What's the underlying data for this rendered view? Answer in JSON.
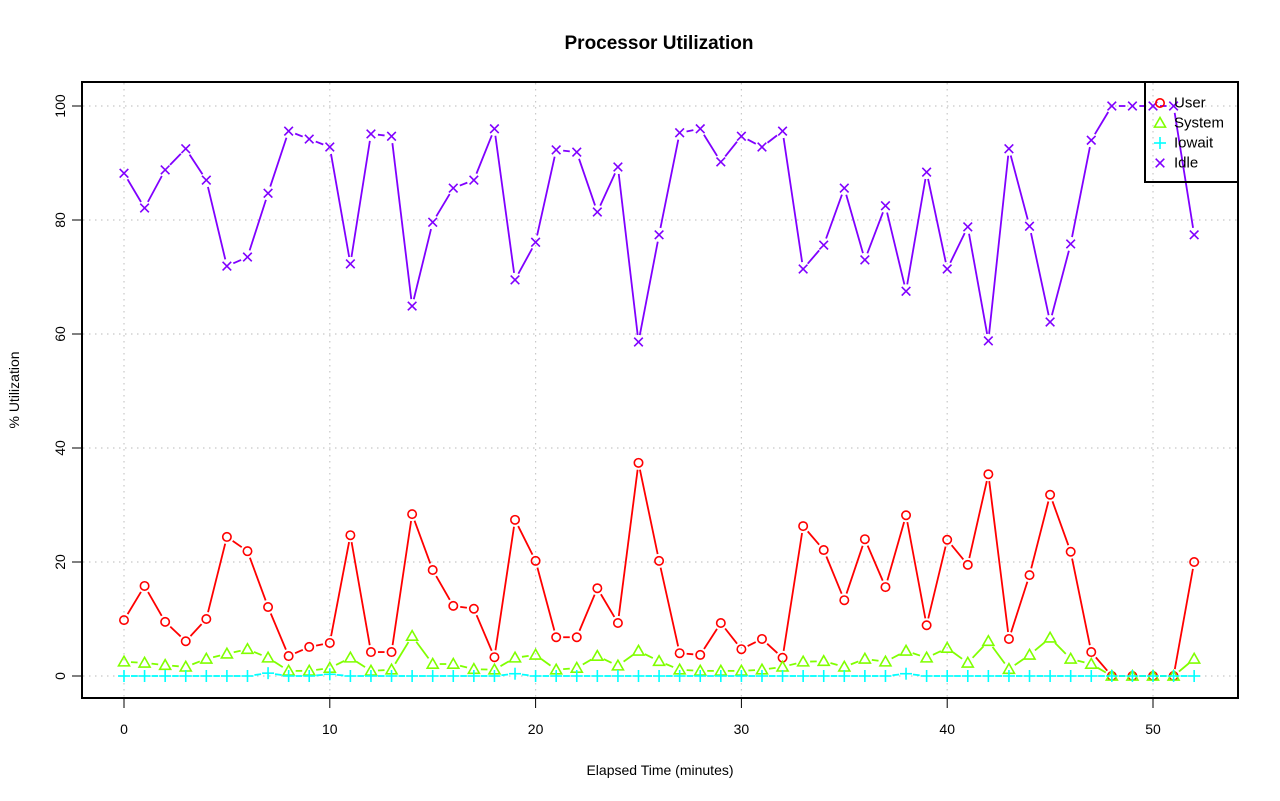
{
  "chart_data": {
    "type": "line",
    "title": "Processor Utilization",
    "xlabel": "Elapsed Time (minutes)",
    "ylabel": "% Utilization",
    "xlim": [
      -2.04,
      54.1
    ],
    "ylim": [
      -4,
      104
    ],
    "xticks": [
      0,
      10,
      20,
      30,
      40,
      50
    ],
    "yticks": [
      0,
      20,
      40,
      60,
      80,
      100
    ],
    "xtick_labels": [
      "0",
      "10",
      "20",
      "30",
      "40",
      "50"
    ],
    "ytick_labels": [
      "0",
      "20",
      "40",
      "60",
      "80",
      "100"
    ],
    "grid": true,
    "legend_position": "top-right",
    "x": [
      0,
      1,
      2,
      3,
      4,
      5,
      6,
      7,
      8,
      9,
      10,
      11,
      12,
      13,
      14,
      15,
      16,
      17,
      18,
      19,
      20,
      21,
      22,
      23,
      24,
      25,
      26,
      27,
      28,
      29,
      30,
      31,
      32,
      33,
      34,
      35,
      36,
      37,
      38,
      39,
      40,
      41,
      42,
      43,
      44,
      45,
      46,
      47,
      48,
      49,
      50,
      51,
      52
    ],
    "series": [
      {
        "name": "User",
        "color": "#ff0000",
        "marker": "circle",
        "values": [
          9.8,
          15.8,
          9.5,
          6.1,
          10.0,
          24.4,
          21.9,
          12.1,
          3.5,
          5.1,
          5.8,
          24.7,
          4.2,
          4.2,
          28.4,
          18.6,
          12.3,
          11.8,
          3.3,
          27.4,
          20.2,
          6.8,
          6.8,
          15.4,
          9.3,
          37.4,
          20.2,
          4.0,
          3.7,
          9.3,
          4.7,
          6.5,
          3.2,
          26.3,
          22.1,
          13.3,
          24.0,
          15.6,
          28.2,
          8.9,
          23.9,
          19.5,
          35.4,
          6.5,
          17.7,
          31.8,
          21.8,
          4.2,
          0,
          0,
          0,
          0,
          20.0
        ]
      },
      {
        "name": "System",
        "color": "#80ff00",
        "marker": "triangle",
        "values": [
          2.5,
          2.3,
          1.9,
          1.6,
          3.0,
          3.9,
          4.7,
          3.2,
          0.9,
          0.9,
          1.4,
          3.2,
          0.9,
          1.1,
          7.0,
          2.1,
          2.1,
          1.2,
          1.1,
          3.2,
          3.7,
          1.1,
          1.4,
          3.5,
          1.8,
          4.4,
          2.6,
          1.1,
          0.9,
          0.9,
          0.9,
          1.1,
          1.6,
          2.5,
          2.6,
          1.6,
          3.0,
          2.5,
          4.4,
          3.2,
          4.9,
          2.3,
          6.1,
          1.2,
          3.7,
          6.7,
          3.0,
          2.1,
          0,
          0,
          0,
          0,
          3.0
        ]
      },
      {
        "name": "Iowait",
        "color": "#00ffff",
        "marker": "plus",
        "values": [
          0,
          0,
          0,
          0,
          0,
          0,
          0,
          0.5,
          0,
          0,
          0.3,
          0,
          0,
          0,
          0,
          0,
          0,
          0,
          0,
          0.4,
          0,
          0,
          0,
          0,
          0,
          0,
          0,
          0,
          0,
          0,
          0,
          0,
          0,
          0,
          0,
          0,
          0,
          0,
          0.4,
          0,
          0,
          0,
          0,
          0,
          0,
          0,
          0,
          0,
          0,
          0,
          0,
          0,
          0
        ]
      },
      {
        "name": "Idle",
        "color": "#8000ff",
        "marker": "cross",
        "values": [
          88.2,
          82.1,
          88.8,
          92.5,
          87.0,
          71.9,
          73.5,
          84.7,
          95.6,
          94.2,
          92.8,
          72.3,
          95.1,
          94.7,
          64.9,
          79.6,
          85.6,
          87.0,
          96.0,
          69.5,
          76.1,
          92.3,
          91.9,
          81.4,
          89.3,
          58.6,
          77.4,
          95.3,
          96.0,
          90.2,
          94.7,
          92.8,
          95.6,
          71.4,
          75.6,
          85.6,
          73.0,
          82.5,
          67.5,
          88.4,
          71.4,
          78.8,
          58.8,
          92.5,
          78.9,
          62.1,
          75.8,
          94.0,
          100,
          100,
          100,
          100,
          77.4
        ]
      }
    ]
  }
}
